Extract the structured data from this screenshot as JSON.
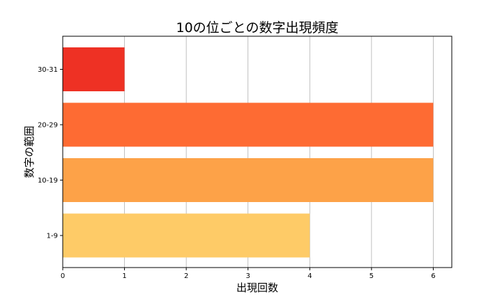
{
  "chart_data": {
    "type": "bar",
    "orientation": "horizontal",
    "title": "10の位ごとの数字出現頻度",
    "xlabel": "出現回数",
    "ylabel": "数字の範囲",
    "categories": [
      "1-9",
      "10-19",
      "20-29",
      "30-31"
    ],
    "values": [
      4,
      6,
      6,
      1
    ],
    "colors": [
      "#FECB67",
      "#FDA248",
      "#FE6B33",
      "#EE3124"
    ],
    "xlim": [
      0,
      6.3
    ],
    "xticks": [
      "0",
      "1",
      "2",
      "3",
      "4",
      "5",
      "6"
    ],
    "grid": "x"
  }
}
